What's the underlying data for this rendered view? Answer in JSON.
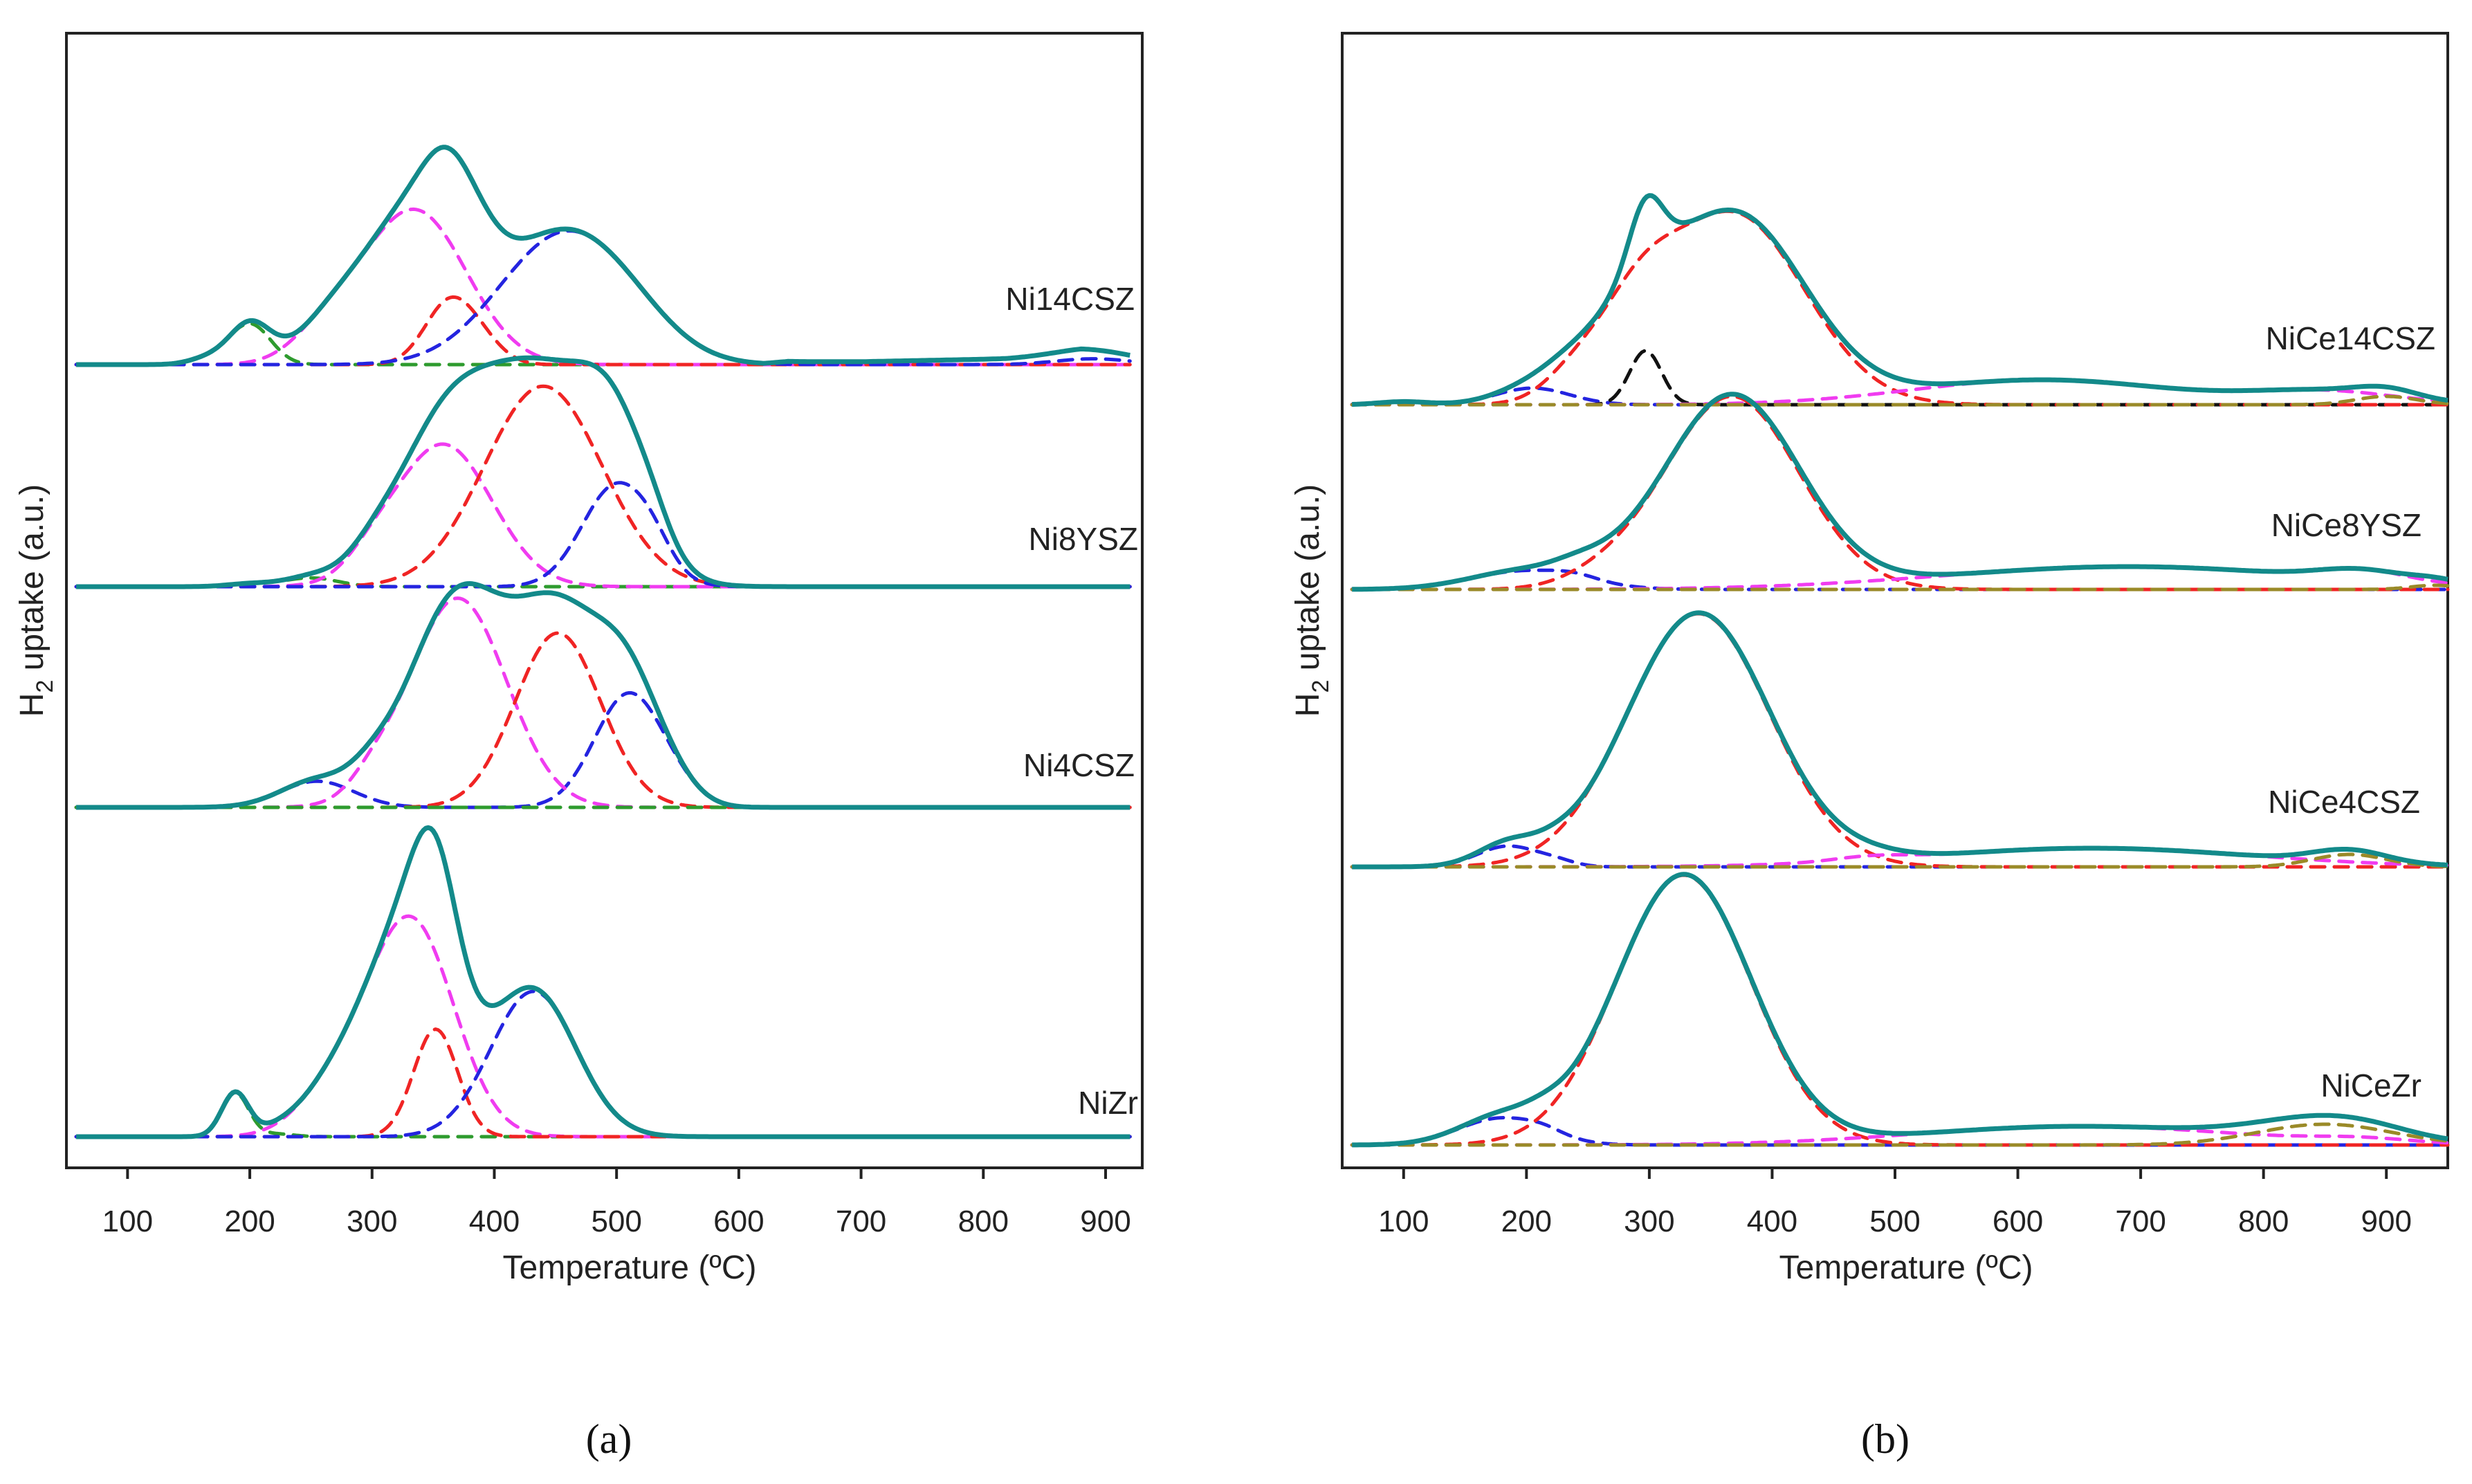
{
  "chart_data": [
    {
      "type": "line",
      "panel_label": "(a)",
      "xlabel": "Temperature (ºC)",
      "ylabel_main": "H",
      "ylabel_sub": "2",
      "ylabel_rest": " uptake (a.u.)",
      "xlim": [
        50,
        930
      ],
      "xticks": [
        "100",
        "200",
        "300",
        "400",
        "500",
        "600",
        "700",
        "800",
        "900"
      ],
      "xtick_values": [
        100,
        200,
        300,
        400,
        500,
        600,
        700,
        800,
        900
      ],
      "line_end": 920,
      "colors": {
        "total": "#138a8a",
        "green": "#2e9b2e",
        "magenta": "#f03cf0",
        "red": "#f02424",
        "blue": "#2424e0",
        "black": "#111111",
        "olive": "#9a8a28"
      },
      "samples": [
        {
          "name": "Ni14CSZ",
          "total_components": [
            "green",
            "magenta",
            "red",
            "blue"
          ],
          "total_tail": [
            [
              620,
              0.0
            ],
            [
              640,
              0.01
            ],
            [
              700,
              0.01
            ],
            [
              760,
              0.015
            ],
            [
              820,
              0.02
            ],
            [
              880,
              0.035
            ],
            [
              920,
              0.02
            ]
          ],
          "components": [
            {
              "color": "green",
              "peaks": [
                [
                  200,
                  0.14,
                  17
                ],
                [
                  165,
                  0.02,
                  15
                ]
              ]
            },
            {
              "color": "magenta",
              "peaks": [
                [
                  335,
                  0.53,
                  42
                ],
                [
                  265,
                  0.1,
                  28
                ]
              ]
            },
            {
              "color": "red",
              "peaks": [
                [
                  363,
                  0.21,
                  20
                ],
                [
                  390,
                  0.06,
                  18
                ]
              ]
            },
            {
              "color": "blue",
              "peaks": [
                [
                  455,
                  0.43,
                  52
                ],
                [
                  510,
                  0.07,
                  40
                ],
                [
                  890,
                  0.02,
                  30
                ]
              ]
            }
          ]
        },
        {
          "name": "Ni8YSZ",
          "total_components": [
            "green",
            "magenta",
            "red",
            "blue"
          ],
          "total_tail": [],
          "components": [
            {
              "color": "green",
              "peaks": [
                [
                  250,
                  0.03,
                  22
                ],
                [
                  200,
                  0.01,
                  18
                ]
              ]
            },
            {
              "color": "magenta",
              "peaks": [
                [
                  358,
                  0.49,
                  40
                ],
                [
                  300,
                  0.05,
                  20
                ]
              ]
            },
            {
              "color": "red",
              "peaks": [
                [
                  440,
                  0.69,
                  48
                ]
              ]
            },
            {
              "color": "blue",
              "peaks": [
                [
                  500,
                  0.35,
                  28
                ],
                [
                  530,
                  0.05,
                  15
                ]
              ]
            }
          ]
        },
        {
          "name": "Ni4CSZ",
          "total_components": [
            "blue",
            "magenta",
            "red"
          ],
          "total_tail": [],
          "components": [
            {
              "color": "blue",
              "peaks": [
                [
                  255,
                  0.09,
                  30
                ],
                [
                  510,
                  0.39,
                  28
                ],
                [
                  550,
                  0.03,
                  20
                ]
              ]
            },
            {
              "color": "magenta",
              "peaks": [
                [
                  370,
                  0.72,
                  40
                ],
                [
                  300,
                  0.05,
                  18
                ]
              ]
            },
            {
              "color": "red",
              "peaks": [
                [
                  452,
                  0.6,
                  35
                ]
              ]
            },
            {
              "color": "green",
              "peaks": []
            }
          ]
        },
        {
          "name": "NiZr",
          "total_components": [
            "green",
            "magenta",
            "red",
            "blue"
          ],
          "total_tail": [],
          "components": [
            {
              "color": "green",
              "peaks": [
                [
                  188,
                  0.15,
                  11
                ],
                [
                  220,
                  0.01,
                  15
                ]
              ]
            },
            {
              "color": "magenta",
              "peaks": [
                [
                  332,
                  0.74,
                  35
                ],
                [
                  270,
                  0.15,
                  30
                ]
              ]
            },
            {
              "color": "red",
              "peaks": [
                [
                  352,
                  0.37,
                  18
                ]
              ]
            },
            {
              "color": "blue",
              "peaks": [
                [
                  432,
                  0.5,
                  35
                ]
              ]
            }
          ]
        }
      ]
    },
    {
      "type": "line",
      "panel_label": "(b)",
      "xlabel": "Temperature (ºC)",
      "ylabel_main": "H",
      "ylabel_sub": "2",
      "ylabel_rest": " uptake (a.u.)",
      "xlim": [
        50,
        950
      ],
      "xticks": [
        "100",
        "200",
        "300",
        "400",
        "500",
        "600",
        "700",
        "800",
        "900"
      ],
      "xtick_values": [
        100,
        200,
        300,
        400,
        500,
        600,
        700,
        800,
        900
      ],
      "line_end": 950,
      "colors": {
        "total": "#138a8a",
        "green": "#2e9b2e",
        "magenta": "#f03cf0",
        "red": "#f02424",
        "blue": "#2424e0",
        "black": "#111111",
        "olive": "#9a8a28"
      },
      "samples": [
        {
          "name": "NiCe14CSZ",
          "total_components": [
            "blue",
            "black",
            "red",
            "magenta",
            "olive"
          ],
          "total_tail": [],
          "components": [
            {
              "color": "blue",
              "peaks": [
                [
                  205,
                  0.08,
                  30
                ],
                [
                  100,
                  0.015,
                  20
                ]
              ]
            },
            {
              "color": "black",
              "peaks": [
                [
                  297,
                  0.26,
                  13
                ]
              ]
            },
            {
              "color": "red",
              "peaks": [
                [
                  368,
                  0.92,
                  58
                ],
                [
                  290,
                  0.3,
                  30
                ],
                [
                  240,
                  0.12,
                  25
                ]
              ]
            },
            {
              "color": "magenta",
              "peaks": [
                [
                  620,
                  0.12,
                  105
                ],
                [
                  850,
                  0.06,
                  60
                ]
              ]
            },
            {
              "color": "olive",
              "peaks": [
                [
                  900,
                  0.04,
                  25
                ]
              ]
            }
          ]
        },
        {
          "name": "NiCe8YSZ",
          "total_components": [
            "blue",
            "red",
            "magenta",
            "olive"
          ],
          "total_tail": [],
          "components": [
            {
              "color": "blue",
              "peaks": [
                [
                  200,
                  0.09,
                  45
                ],
                [
                  240,
                  0.02,
                  18
                ]
              ]
            },
            {
              "color": "red",
              "peaks": [
                [
                  367,
                  0.93,
                  55
                ],
                [
                  260,
                  0.04,
                  30
                ]
              ]
            },
            {
              "color": "magenta",
              "peaks": [
                [
                  690,
                  0.11,
                  150
                ],
                [
                  880,
                  0.05,
                  35
                ]
              ]
            },
            {
              "color": "olive",
              "peaks": [
                [
                  940,
                  0.02,
                  20
                ]
              ]
            }
          ]
        },
        {
          "name": "NiCe4CSZ",
          "total_components": [
            "blue",
            "red",
            "magenta",
            "olive"
          ],
          "total_tail": [],
          "components": [
            {
              "color": "blue",
              "peaks": [
                [
                  185,
                  0.1,
                  25
                ],
                [
                  225,
                  0.02,
                  15
                ]
              ]
            },
            {
              "color": "red",
              "peaks": [
                [
                  340,
                  1.22,
                  58
                ]
              ]
            },
            {
              "color": "magenta",
              "peaks": [
                [
                  660,
                  0.09,
                  130
                ],
                [
                  480,
                  0.02,
                  30
                ]
              ]
            },
            {
              "color": "olive",
              "peaks": [
                [
                  870,
                  0.06,
                  30
                ]
              ]
            }
          ]
        },
        {
          "name": "NiCeZr",
          "total_components": [
            "blue",
            "red",
            "magenta",
            "olive"
          ],
          "total_tail": [],
          "components": [
            {
              "color": "blue",
              "peaks": [
                [
                  180,
                  0.13,
                  35
                ],
                [
                  215,
                  0.02,
                  15
                ]
              ]
            },
            {
              "color": "red",
              "peaks": [
                [
                  328,
                  1.3,
                  55
                ]
              ]
            },
            {
              "color": "magenta",
              "peaks": [
                [
                  650,
                  0.09,
                  130
                ],
                [
                  880,
                  0.02,
                  40
                ]
              ]
            },
            {
              "color": "olive",
              "peaks": [
                [
                  850,
                  0.1,
                  55
                ]
              ]
            }
          ]
        }
      ]
    }
  ]
}
